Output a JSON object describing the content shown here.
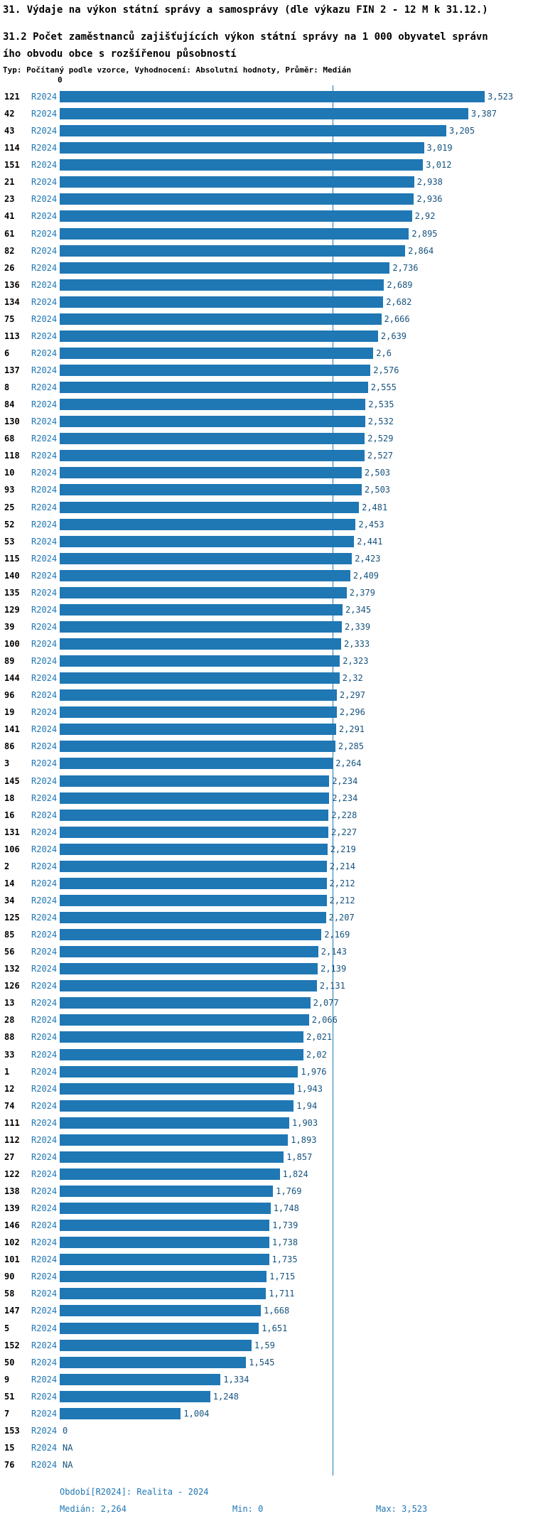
{
  "header": {
    "title": "31. Výdaje na výkon státní správy a samosprávy (dle výkazu FIN 2 - 12 M k 31.12.)",
    "subtitle_line1": "31.2 Počet zaměstnanců zajišťujících výkon státní správy na 1 000 obyvatel správn",
    "subtitle_line2": "ího obvodu obce s rozšířenou působností",
    "meta": "Typ: Počítaný podle vzorce, Vyhodnocení: Absolutní hodnoty, Průměr: Medián"
  },
  "colors": {
    "bar": "#1f77b4",
    "series_label": "#2077b4",
    "value_label": "#16537e",
    "median_line": "#1f77b4",
    "footer_text": "#1f77b4"
  },
  "chart_data": {
    "type": "bar",
    "orientation": "horizontal",
    "series_label": "R2024",
    "axis_origin_label": "0",
    "xlim": [
      0,
      3.523
    ],
    "median": 2.264,
    "min": 0,
    "max": 3.523,
    "rows": [
      {
        "id": "121",
        "value": 3.523,
        "label": "3,523"
      },
      {
        "id": "42",
        "value": 3.387,
        "label": "3,387"
      },
      {
        "id": "43",
        "value": 3.205,
        "label": "3,205"
      },
      {
        "id": "114",
        "value": 3.019,
        "label": "3,019"
      },
      {
        "id": "151",
        "value": 3.012,
        "label": "3,012"
      },
      {
        "id": "21",
        "value": 2.938,
        "label": "2,938"
      },
      {
        "id": "23",
        "value": 2.936,
        "label": "2,936"
      },
      {
        "id": "41",
        "value": 2.92,
        "label": "2,92"
      },
      {
        "id": "61",
        "value": 2.895,
        "label": "2,895"
      },
      {
        "id": "82",
        "value": 2.864,
        "label": "2,864"
      },
      {
        "id": "26",
        "value": 2.736,
        "label": "2,736"
      },
      {
        "id": "136",
        "value": 2.689,
        "label": "2,689"
      },
      {
        "id": "134",
        "value": 2.682,
        "label": "2,682"
      },
      {
        "id": "75",
        "value": 2.666,
        "label": "2,666"
      },
      {
        "id": "113",
        "value": 2.639,
        "label": "2,639"
      },
      {
        "id": "6",
        "value": 2.6,
        "label": "2,6"
      },
      {
        "id": "137",
        "value": 2.576,
        "label": "2,576"
      },
      {
        "id": "8",
        "value": 2.555,
        "label": "2,555"
      },
      {
        "id": "84",
        "value": 2.535,
        "label": "2,535"
      },
      {
        "id": "130",
        "value": 2.532,
        "label": "2,532"
      },
      {
        "id": "68",
        "value": 2.529,
        "label": "2,529"
      },
      {
        "id": "118",
        "value": 2.527,
        "label": "2,527"
      },
      {
        "id": "10",
        "value": 2.503,
        "label": "2,503"
      },
      {
        "id": "93",
        "value": 2.503,
        "label": "2,503"
      },
      {
        "id": "25",
        "value": 2.481,
        "label": "2,481"
      },
      {
        "id": "52",
        "value": 2.453,
        "label": "2,453"
      },
      {
        "id": "53",
        "value": 2.441,
        "label": "2,441"
      },
      {
        "id": "115",
        "value": 2.423,
        "label": "2,423"
      },
      {
        "id": "140",
        "value": 2.409,
        "label": "2,409"
      },
      {
        "id": "135",
        "value": 2.379,
        "label": "2,379"
      },
      {
        "id": "129",
        "value": 2.345,
        "label": "2,345"
      },
      {
        "id": "39",
        "value": 2.339,
        "label": "2,339"
      },
      {
        "id": "100",
        "value": 2.333,
        "label": "2,333"
      },
      {
        "id": "89",
        "value": 2.323,
        "label": "2,323"
      },
      {
        "id": "144",
        "value": 2.32,
        "label": "2,32"
      },
      {
        "id": "96",
        "value": 2.297,
        "label": "2,297"
      },
      {
        "id": "19",
        "value": 2.296,
        "label": "2,296"
      },
      {
        "id": "141",
        "value": 2.291,
        "label": "2,291"
      },
      {
        "id": "86",
        "value": 2.285,
        "label": "2,285"
      },
      {
        "id": "3",
        "value": 2.264,
        "label": "2,264"
      },
      {
        "id": "145",
        "value": 2.234,
        "label": "2,234"
      },
      {
        "id": "18",
        "value": 2.234,
        "label": "2,234"
      },
      {
        "id": "16",
        "value": 2.228,
        "label": "2,228"
      },
      {
        "id": "131",
        "value": 2.227,
        "label": "2,227"
      },
      {
        "id": "106",
        "value": 2.219,
        "label": "2,219"
      },
      {
        "id": "2",
        "value": 2.214,
        "label": "2,214"
      },
      {
        "id": "14",
        "value": 2.212,
        "label": "2,212"
      },
      {
        "id": "34",
        "value": 2.212,
        "label": "2,212"
      },
      {
        "id": "125",
        "value": 2.207,
        "label": "2,207"
      },
      {
        "id": "85",
        "value": 2.169,
        "label": "2,169"
      },
      {
        "id": "56",
        "value": 2.143,
        "label": "2,143"
      },
      {
        "id": "132",
        "value": 2.139,
        "label": "2,139"
      },
      {
        "id": "126",
        "value": 2.131,
        "label": "2,131"
      },
      {
        "id": "13",
        "value": 2.077,
        "label": "2,077"
      },
      {
        "id": "28",
        "value": 2.066,
        "label": "2,066"
      },
      {
        "id": "88",
        "value": 2.021,
        "label": "2,021"
      },
      {
        "id": "33",
        "value": 2.02,
        "label": "2,02"
      },
      {
        "id": "1",
        "value": 1.976,
        "label": "1,976"
      },
      {
        "id": "12",
        "value": 1.943,
        "label": "1,943"
      },
      {
        "id": "74",
        "value": 1.94,
        "label": "1,94"
      },
      {
        "id": "111",
        "value": 1.903,
        "label": "1,903"
      },
      {
        "id": "112",
        "value": 1.893,
        "label": "1,893"
      },
      {
        "id": "27",
        "value": 1.857,
        "label": "1,857"
      },
      {
        "id": "122",
        "value": 1.824,
        "label": "1,824"
      },
      {
        "id": "138",
        "value": 1.769,
        "label": "1,769"
      },
      {
        "id": "139",
        "value": 1.748,
        "label": "1,748"
      },
      {
        "id": "146",
        "value": 1.739,
        "label": "1,739"
      },
      {
        "id": "102",
        "value": 1.738,
        "label": "1,738"
      },
      {
        "id": "101",
        "value": 1.735,
        "label": "1,735"
      },
      {
        "id": "90",
        "value": 1.715,
        "label": "1,715"
      },
      {
        "id": "58",
        "value": 1.711,
        "label": "1,711"
      },
      {
        "id": "147",
        "value": 1.668,
        "label": "1,668"
      },
      {
        "id": "5",
        "value": 1.651,
        "label": "1,651"
      },
      {
        "id": "152",
        "value": 1.59,
        "label": "1,59"
      },
      {
        "id": "50",
        "value": 1.545,
        "label": "1,545"
      },
      {
        "id": "9",
        "value": 1.334,
        "label": "1,334"
      },
      {
        "id": "51",
        "value": 1.248,
        "label": "1,248"
      },
      {
        "id": "7",
        "value": 1.004,
        "label": "1,004"
      },
      {
        "id": "153",
        "value": 0,
        "label": "0"
      },
      {
        "id": "15",
        "value": null,
        "label": "NA"
      },
      {
        "id": "76",
        "value": null,
        "label": "NA"
      }
    ],
    "footer": {
      "period": "Období[R2024]: Realita - 2024",
      "median_stat": "Medián: 2,264",
      "min_stat": "Min: 0",
      "max_stat": "Max: 3,523"
    }
  }
}
